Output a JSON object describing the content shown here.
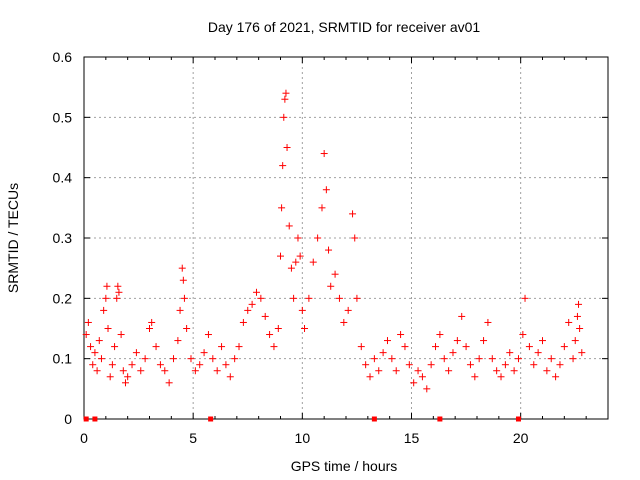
{
  "chart_data": {
    "type": "scatter",
    "title": "Day 176 of 2021, SRMTID for receiver av01",
    "xlabel": "GPS time / hours",
    "ylabel": "SRMTID / TECUs",
    "xlim": [
      0,
      24
    ],
    "ylim": [
      0,
      0.6
    ],
    "x_ticks": [
      0,
      5,
      10,
      15,
      20
    ],
    "x_tick_labels": [
      "0",
      "5",
      "10",
      "15",
      "20"
    ],
    "y_ticks": [
      0,
      0.1,
      0.2,
      0.3,
      0.4,
      0.5,
      0.6
    ],
    "y_tick_labels": [
      "0",
      "0.1",
      "0.2",
      "0.3",
      "0.4",
      "0.5",
      "0.6"
    ],
    "grid": true,
    "marker": "plus",
    "color": "#ff0000",
    "baseline_markers_x": [
      0.1,
      0.5,
      5.8,
      13.3,
      16.3,
      19.9
    ],
    "series": [
      {
        "name": "SRMTID",
        "points": [
          [
            0.1,
            0.14
          ],
          [
            0.2,
            0.16
          ],
          [
            0.3,
            0.12
          ],
          [
            0.4,
            0.09
          ],
          [
            0.5,
            0.11
          ],
          [
            0.6,
            0.08
          ],
          [
            0.7,
            0.13
          ],
          [
            0.8,
            0.1
          ],
          [
            0.9,
            0.18
          ],
          [
            1.0,
            0.2
          ],
          [
            1.05,
            0.22
          ],
          [
            1.1,
            0.15
          ],
          [
            1.2,
            0.07
          ],
          [
            1.3,
            0.09
          ],
          [
            1.4,
            0.12
          ],
          [
            1.5,
            0.2
          ],
          [
            1.55,
            0.22
          ],
          [
            1.6,
            0.21
          ],
          [
            1.7,
            0.14
          ],
          [
            1.8,
            0.08
          ],
          [
            1.9,
            0.06
          ],
          [
            2.0,
            0.07
          ],
          [
            2.2,
            0.09
          ],
          [
            2.4,
            0.11
          ],
          [
            2.6,
            0.08
          ],
          [
            2.8,
            0.1
          ],
          [
            3.0,
            0.15
          ],
          [
            3.1,
            0.16
          ],
          [
            3.3,
            0.12
          ],
          [
            3.5,
            0.09
          ],
          [
            3.7,
            0.08
          ],
          [
            3.9,
            0.06
          ],
          [
            4.1,
            0.1
          ],
          [
            4.3,
            0.13
          ],
          [
            4.4,
            0.18
          ],
          [
            4.5,
            0.25
          ],
          [
            4.55,
            0.23
          ],
          [
            4.6,
            0.2
          ],
          [
            4.7,
            0.15
          ],
          [
            4.9,
            0.1
          ],
          [
            5.1,
            0.08
          ],
          [
            5.3,
            0.09
          ],
          [
            5.5,
            0.11
          ],
          [
            5.7,
            0.14
          ],
          [
            5.9,
            0.1
          ],
          [
            6.1,
            0.08
          ],
          [
            6.3,
            0.12
          ],
          [
            6.5,
            0.09
          ],
          [
            6.7,
            0.07
          ],
          [
            6.9,
            0.1
          ],
          [
            7.1,
            0.12
          ],
          [
            7.3,
            0.16
          ],
          [
            7.5,
            0.18
          ],
          [
            7.7,
            0.19
          ],
          [
            7.9,
            0.21
          ],
          [
            8.1,
            0.2
          ],
          [
            8.3,
            0.17
          ],
          [
            8.5,
            0.14
          ],
          [
            8.7,
            0.12
          ],
          [
            8.9,
            0.15
          ],
          [
            9.0,
            0.27
          ],
          [
            9.05,
            0.35
          ],
          [
            9.1,
            0.42
          ],
          [
            9.15,
            0.5
          ],
          [
            9.2,
            0.53
          ],
          [
            9.25,
            0.54
          ],
          [
            9.3,
            0.45
          ],
          [
            9.4,
            0.32
          ],
          [
            9.5,
            0.25
          ],
          [
            9.6,
            0.2
          ],
          [
            9.7,
            0.26
          ],
          [
            9.8,
            0.3
          ],
          [
            9.9,
            0.27
          ],
          [
            10.0,
            0.18
          ],
          [
            10.1,
            0.15
          ],
          [
            10.3,
            0.2
          ],
          [
            10.5,
            0.26
          ],
          [
            10.7,
            0.3
          ],
          [
            10.9,
            0.35
          ],
          [
            11.0,
            0.44
          ],
          [
            11.1,
            0.38
          ],
          [
            11.2,
            0.28
          ],
          [
            11.3,
            0.22
          ],
          [
            11.5,
            0.24
          ],
          [
            11.7,
            0.2
          ],
          [
            11.9,
            0.16
          ],
          [
            12.1,
            0.18
          ],
          [
            12.3,
            0.34
          ],
          [
            12.4,
            0.3
          ],
          [
            12.5,
            0.2
          ],
          [
            12.7,
            0.12
          ],
          [
            12.9,
            0.09
          ],
          [
            13.1,
            0.07
          ],
          [
            13.3,
            0.1
          ],
          [
            13.5,
            0.08
          ],
          [
            13.7,
            0.11
          ],
          [
            13.9,
            0.13
          ],
          [
            14.1,
            0.1
          ],
          [
            14.3,
            0.08
          ],
          [
            14.5,
            0.14
          ],
          [
            14.7,
            0.12
          ],
          [
            14.9,
            0.09
          ],
          [
            15.1,
            0.06
          ],
          [
            15.3,
            0.08
          ],
          [
            15.5,
            0.07
          ],
          [
            15.7,
            0.05
          ],
          [
            15.9,
            0.09
          ],
          [
            16.1,
            0.12
          ],
          [
            16.3,
            0.14
          ],
          [
            16.5,
            0.1
          ],
          [
            16.7,
            0.08
          ],
          [
            16.9,
            0.11
          ],
          [
            17.1,
            0.13
          ],
          [
            17.3,
            0.17
          ],
          [
            17.5,
            0.12
          ],
          [
            17.7,
            0.09
          ],
          [
            17.9,
            0.07
          ],
          [
            18.1,
            0.1
          ],
          [
            18.3,
            0.13
          ],
          [
            18.5,
            0.16
          ],
          [
            18.7,
            0.1
          ],
          [
            18.9,
            0.08
          ],
          [
            19.1,
            0.07
          ],
          [
            19.3,
            0.09
          ],
          [
            19.5,
            0.11
          ],
          [
            19.7,
            0.08
          ],
          [
            19.9,
            0.1
          ],
          [
            20.1,
            0.14
          ],
          [
            20.2,
            0.2
          ],
          [
            20.4,
            0.12
          ],
          [
            20.6,
            0.09
          ],
          [
            20.8,
            0.11
          ],
          [
            21.0,
            0.13
          ],
          [
            21.2,
            0.08
          ],
          [
            21.4,
            0.1
          ],
          [
            21.6,
            0.07
          ],
          [
            21.8,
            0.09
          ],
          [
            22.0,
            0.12
          ],
          [
            22.2,
            0.16
          ],
          [
            22.4,
            0.1
          ],
          [
            22.5,
            0.13
          ],
          [
            22.6,
            0.17
          ],
          [
            22.65,
            0.19
          ],
          [
            22.7,
            0.15
          ],
          [
            22.8,
            0.11
          ]
        ]
      }
    ]
  }
}
